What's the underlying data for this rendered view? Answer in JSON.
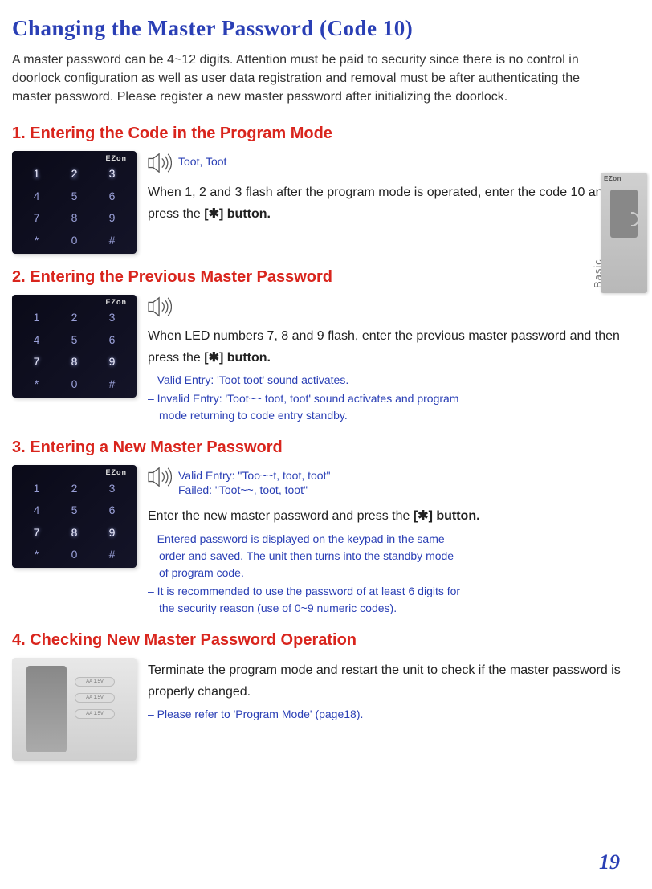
{
  "title": "Changing the Master Password (Code 10)",
  "intro": "A master password can be 4~12 digits. Attention must be paid to security since there is no control in doorlock configuration as well as user data registration and removal must be after authenticating the master password. Please register a new master password after initializing the doorlock.",
  "colors": {
    "deep_blue": "#2a3fb5",
    "red": "#d9251d",
    "body": "#222222"
  },
  "keypad": {
    "brand": "EZon",
    "keys": [
      "1",
      "2",
      "3",
      "4",
      "5",
      "6",
      "7",
      "8",
      "9",
      "*",
      "0",
      "#"
    ]
  },
  "side_badge": {
    "top_label": "EZon",
    "bottom_label": "Basic"
  },
  "sections": [
    {
      "heading": "1. Entering the Code in the Program Mode",
      "highlight_rows": [
        "top"
      ],
      "sound": "Toot, Toot",
      "body_pre": "When 1, 2 and 3 flash after the program mode is operated, enter the code 10 and press the ",
      "body_bold": "[✱] button.",
      "notes": []
    },
    {
      "heading": "2. Entering the Previous Master Password",
      "highlight_rows": [
        "bottom"
      ],
      "sound": "",
      "body_pre": "When LED numbers 7, 8 and 9 flash, enter the previous master password and then press the ",
      "body_bold": "[✱] button.",
      "notes": [
        "– Valid Entry: 'Toot toot' sound activates.",
        "– Invalid Entry: 'Toot~~ toot, toot' sound activates and program",
        "   mode returning to code entry standby."
      ]
    },
    {
      "heading": "3. Entering a New Master Password",
      "highlight_rows": [
        "bottom"
      ],
      "sound": "Valid Entry: \"Too~~t, toot, toot\"\nFailed: \"Toot~~, toot, toot\"",
      "body_pre": "Enter the new master password and press the ",
      "body_bold": "[✱] button.",
      "notes": [
        "– Entered password is displayed on the keypad in the same",
        "   order and saved.  The unit then turns into the standby mode",
        "   of program code.",
        "– It is recommended to use the password of at least 6 digits for",
        "   the security reason (use of 0~9 numeric codes)."
      ]
    },
    {
      "heading": "4. Checking New Master Password Operation",
      "highlight_rows": [],
      "sound": null,
      "body_pre": "Terminate the program mode and restart the unit to check if the master password is properly changed.",
      "body_bold": "",
      "notes": [
        "– Please refer to 'Program Mode' (page18)."
      ],
      "photo": true
    }
  ],
  "page_number": "19"
}
